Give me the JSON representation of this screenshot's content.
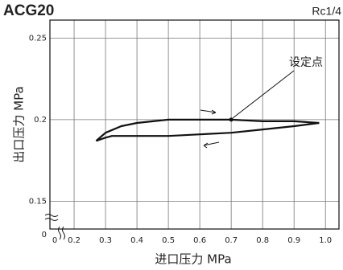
{
  "chart_data": {
    "type": "line",
    "title": "ACG20",
    "subtitle": "Rc1/4",
    "x_label": "进口压力 MPa",
    "y_label": "出口压力 MPa",
    "xlim": [
      0.123,
      1.043
    ],
    "ylim": [
      0.133,
      0.261
    ],
    "xticks": [
      0.2,
      0.3,
      0.4,
      0.5,
      0.6,
      0.7,
      0.8,
      0.9,
      {
        "value": 1.0,
        "label": "1.0"
      }
    ],
    "yticks": [
      0.15,
      {
        "value": 0.2,
        "label": "0.2"
      },
      0.25
    ],
    "x_origin": 0,
    "y_origin": 0,
    "grid": true,
    "series": [
      {
        "color": "#111111",
        "x": [
          0.27,
          0.3,
          0.35,
          0.4,
          0.5,
          0.6,
          0.7,
          0.8,
          0.9,
          0.98
        ],
        "values": [
          0.187,
          0.192,
          0.196,
          0.198,
          0.2,
          0.2,
          0.2,
          0.199,
          0.199,
          0.198
        ]
      },
      {
        "color": "#111111",
        "x": [
          0.27,
          0.3,
          0.32,
          0.4,
          0.5,
          0.6,
          0.7,
          0.8,
          0.9,
          0.98
        ],
        "values": [
          0.187,
          0.189,
          0.19,
          0.19,
          0.19,
          0.191,
          0.192,
          0.194,
          0.196,
          0.198
        ]
      }
    ],
    "set_point": {
      "label": "设定点",
      "x": 0.7,
      "y": 0.2
    }
  }
}
